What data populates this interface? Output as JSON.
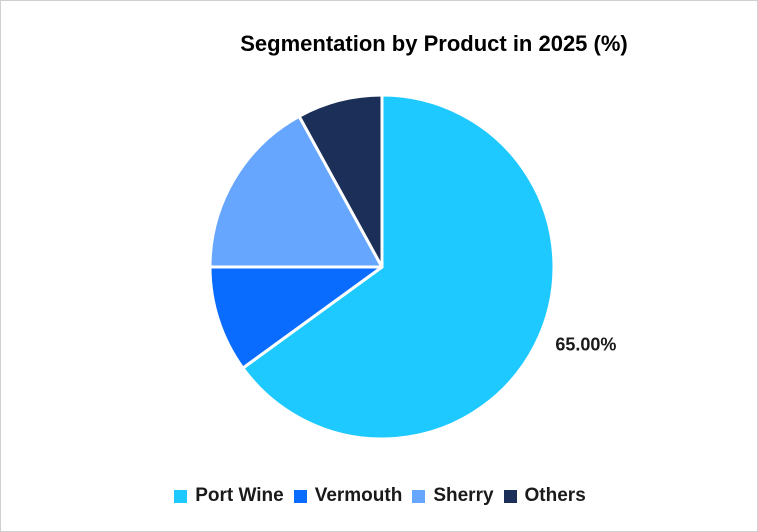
{
  "chart_data": {
    "type": "pie",
    "title": "Segmentation by Product in 2025 (%)",
    "categories": [
      "Port Wine",
      "Vermouth",
      "Sherry",
      "Others"
    ],
    "values": [
      65.0,
      10.0,
      17.0,
      8.0
    ],
    "colors": [
      "#1ec9ff",
      "#0a6cff",
      "#66a6ff",
      "#1c2f59"
    ],
    "data_labels": [
      "65.00%",
      "",
      "",
      ""
    ],
    "legend_position": "bottom",
    "start_angle": "12 o'clock, clockwise"
  }
}
